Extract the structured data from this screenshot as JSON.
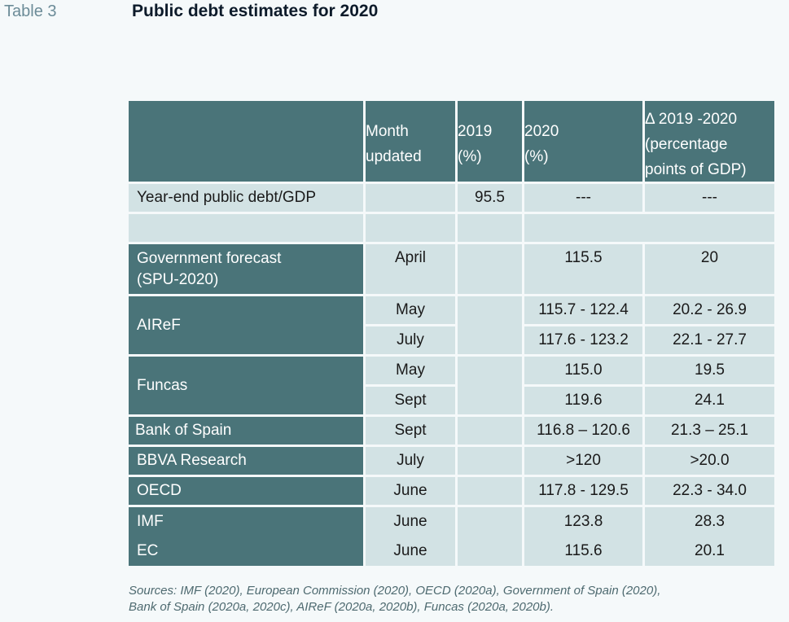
{
  "table_label": "Table 3",
  "title": "Public debt estimates for 2020",
  "headers": {
    "month": [
      "Month",
      "updated"
    ],
    "y2019": [
      "2019",
      "(%)"
    ],
    "y2020": [
      "2020",
      "(%)"
    ],
    "delta": [
      "Δ 2019 -2020",
      "(percentage",
      "points of GDP)"
    ]
  },
  "rows": {
    "yearend": {
      "label": "Year-end public debt/GDP",
      "y2019": "95.5",
      "y2020": "---",
      "delta": "---"
    },
    "gov": {
      "label": [
        "Government forecast",
        "(SPU-2020)"
      ],
      "month": "April",
      "y2020": "115.5",
      "delta": "20"
    },
    "airef": {
      "label": "AIReF",
      "month": [
        "May",
        "July"
      ],
      "y2020": [
        "115.7 - 122.4",
        "117.6 - 123.2"
      ],
      "delta": [
        "20.2 - 26.9",
        "22.1 - 27.7"
      ]
    },
    "funcas": {
      "label": "Funcas",
      "month": [
        "May",
        "Sept"
      ],
      "y2020": [
        "115.0",
        "119.6"
      ],
      "delta": [
        "19.5",
        "24.1"
      ]
    },
    "bos": {
      "label": "Bank of Spain",
      "month": "Sept",
      "y2020": "116.8 – 120.6",
      "delta": "21.3 – 25.1"
    },
    "bbva": {
      "label": "BBVA Research",
      "month": "July",
      "y2020": ">120",
      "delta": ">20.0"
    },
    "oecd": {
      "label": "OECD",
      "month": "June",
      "y2020": "117.8 - 129.5",
      "delta": "22.3 - 34.0"
    },
    "imf_ec": {
      "label": [
        "IMF",
        "EC"
      ],
      "month": [
        "June",
        "June"
      ],
      "y2020": [
        "123.8",
        "115.6"
      ],
      "delta": [
        "28.3",
        "20.1"
      ]
    }
  },
  "sources": [
    "Sources: IMF (2020), European Commission (2020), OECD (2020a), Government of Spain (2020),",
    "Bank of Spain (2020a, 2020c), AIReF (2020a, 2020b), Funcas (2020a, 2020b)."
  ]
}
